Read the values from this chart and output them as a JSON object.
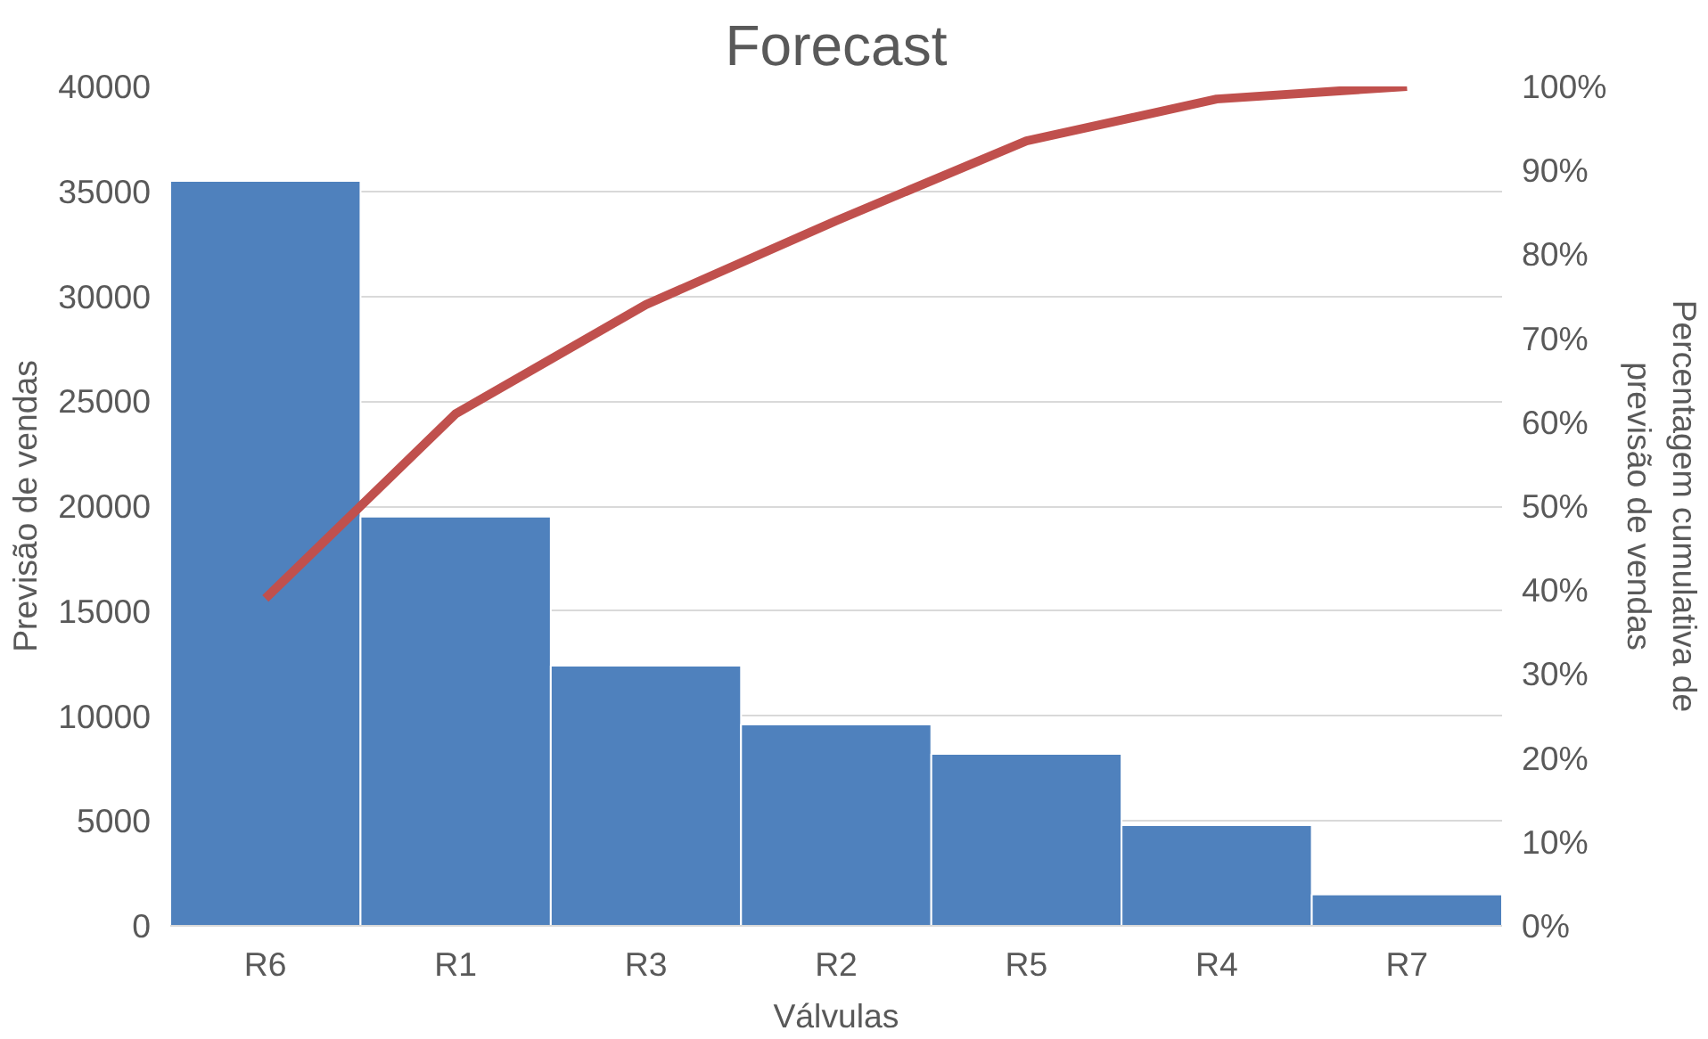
{
  "chart_data": {
    "type": "bar",
    "title": "Forecast",
    "xlabel": "Válvulas",
    "ylabel": "Previsão de vendas",
    "y2label": "Percentagem cumulativa de previsão de vendas",
    "categories": [
      "R6",
      "R1",
      "R3",
      "R2",
      "R5",
      "R4",
      "R7"
    ],
    "series": [
      {
        "color": "#4f81bd",
        "values": [
          35500,
          19500,
          12400,
          9600,
          8200,
          4800,
          1500
        ]
      },
      {
        "type": "line",
        "axis": "y2",
        "color": "#c0504d",
        "values": [
          39,
          61,
          74,
          84,
          93.5,
          98.5,
          100
        ]
      }
    ],
    "ylim": [
      0,
      40000
    ],
    "yticks": [
      0,
      5000,
      10000,
      15000,
      20000,
      25000,
      30000,
      35000,
      40000
    ],
    "y2lim": [
      0,
      100
    ],
    "y2ticks": [
      {
        "value": 0,
        "label": "0%"
      },
      {
        "value": 10,
        "label": "10%"
      },
      {
        "value": 20,
        "label": "20%"
      },
      {
        "value": 30,
        "label": "30%"
      },
      {
        "value": 40,
        "label": "40%"
      },
      {
        "value": 50,
        "label": "50%"
      },
      {
        "value": 60,
        "label": "60%"
      },
      {
        "value": 70,
        "label": "70%"
      },
      {
        "value": 80,
        "label": "80%"
      },
      {
        "value": 90,
        "label": "90%"
      },
      {
        "value": 100,
        "label": "100%"
      }
    ],
    "grid": "y"
  }
}
